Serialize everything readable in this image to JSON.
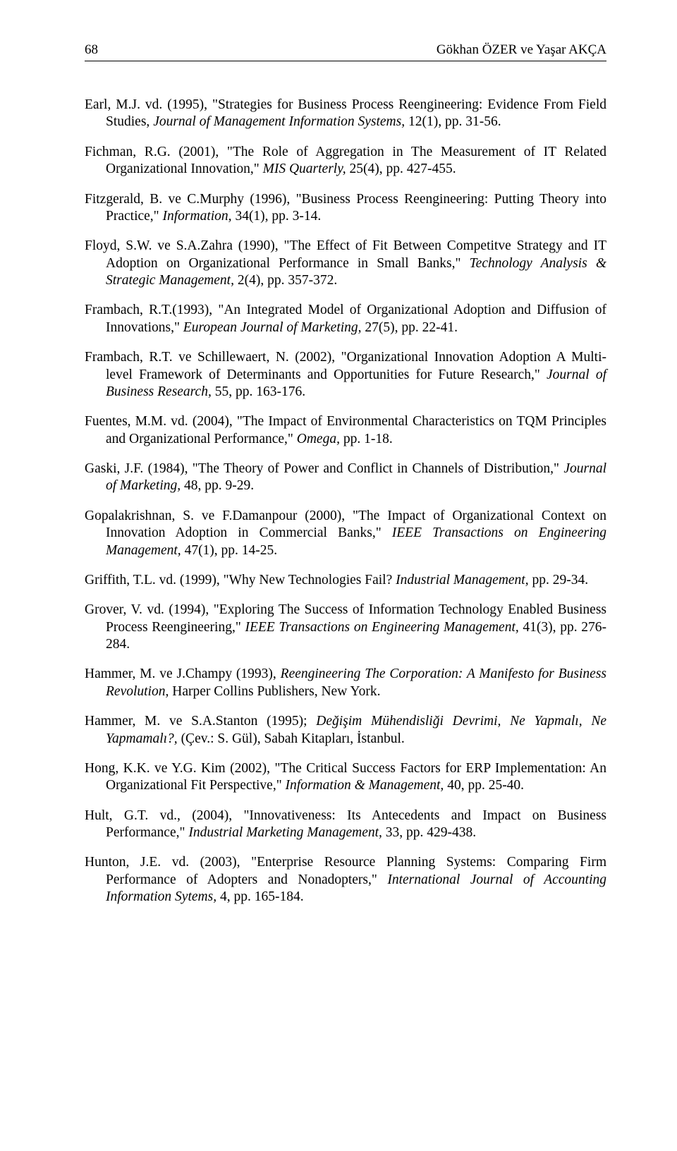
{
  "header": {
    "page_number": "68",
    "authors": "Gökhan ÖZER ve Yaşar AKÇA"
  },
  "references": [
    {
      "segments": [
        {
          "t": "Earl, M.J. vd. (1995), \"Strategies for Business Process Reengineering: Evidence From Field Studies, "
        },
        {
          "t": "Journal of Management Information Systems,",
          "i": true
        },
        {
          "t": " 12(1), pp. 31-56."
        }
      ]
    },
    {
      "segments": [
        {
          "t": "Fichman, R.G. (2001), \"The Role of Aggregation in The Measurement of IT Related Organizational Innovation,\" "
        },
        {
          "t": "MIS Quarterly,",
          "i": true
        },
        {
          "t": " 25(4), pp. 427-455."
        }
      ]
    },
    {
      "segments": [
        {
          "t": "Fitzgerald, B. ve C.Murphy (1996), \"Business Process Reengineering: Putting Theory into Practice,\" "
        },
        {
          "t": "Information,",
          "i": true
        },
        {
          "t": " 34(1), pp. 3-14."
        }
      ]
    },
    {
      "segments": [
        {
          "t": "Floyd, S.W. ve S.A.Zahra (1990), \"The Effect of Fit Between Competitve Strategy and IT Adoption on Organizational Performance in Small Banks,\" "
        },
        {
          "t": "Technology Analysis & Strategic Management,",
          "i": true
        },
        {
          "t": " 2(4), pp. 357-372."
        }
      ]
    },
    {
      "segments": [
        {
          "t": "Frambach, R.T.(1993), \"An Integrated Model of Organizational Adoption and Diffusion of Innovations,\" "
        },
        {
          "t": "European Journal of Marketing,",
          "i": true
        },
        {
          "t": " 27(5), pp. 22-41."
        }
      ]
    },
    {
      "segments": [
        {
          "t": "Frambach, R.T. ve Schillewaert, N. (2002), \"Organizational Innovation Adoption A Multi-level Framework of Determinants and Opportunities for Future Research,\" "
        },
        {
          "t": "Journal of Business Research,",
          "i": true
        },
        {
          "t": " 55, pp. 163-176."
        }
      ]
    },
    {
      "segments": [
        {
          "t": "Fuentes, M.M. vd. (2004), \"The Impact of Environmental Characteristics on TQM Principles and Organizational Performance,\" "
        },
        {
          "t": "Omega,",
          "i": true
        },
        {
          "t": " pp. 1-18."
        }
      ]
    },
    {
      "segments": [
        {
          "t": "Gaski, J.F. (1984), \"The Theory of Power and Conflict in Channels of Distribution,\" "
        },
        {
          "t": "Journal of Marketing,",
          "i": true
        },
        {
          "t": " 48, pp. 9-29."
        }
      ]
    },
    {
      "segments": [
        {
          "t": "Gopalakrishnan, S. ve F.Damanpour (2000), \"The Impact of Organizational Context on Innovation Adoption in Commercial Banks,\" "
        },
        {
          "t": "IEEE Transactions on Engineering Management,",
          "i": true
        },
        {
          "t": " 47(1), pp. 14-25."
        }
      ]
    },
    {
      "segments": [
        {
          "t": "Griffith, T.L. vd. (1999), \"Why New Technologies Fail? "
        },
        {
          "t": "Industrial Management,",
          "i": true
        },
        {
          "t": " pp. 29-34."
        }
      ]
    },
    {
      "segments": [
        {
          "t": "Grover, V. vd. (1994), \"Exploring The Success of Information Technology Enabled Business Process Reengineering,\" "
        },
        {
          "t": "IEEE Transactions on Engineering Management,",
          "i": true
        },
        {
          "t": " 41(3), pp. 276-284."
        }
      ]
    },
    {
      "segments": [
        {
          "t": "Hammer, M. ve J.Champy (1993), "
        },
        {
          "t": "Reengineering The Corporation: A Manifesto for Business Revolution,",
          "i": true
        },
        {
          "t": " Harper Collins Publishers, New York."
        }
      ]
    },
    {
      "segments": [
        {
          "t": "Hammer, M. ve S.A.Stanton (1995); "
        },
        {
          "t": "Değişim Mühendisliği Devrimi, Ne Yapmalı, Ne Yapmamalı?,",
          "i": true
        },
        {
          "t": " (Çev.: S. Gül), Sabah Kitapları, İstanbul."
        }
      ]
    },
    {
      "segments": [
        {
          "t": "Hong, K.K. ve Y.G. Kim (2002), \"The Critical Success Factors for ERP Implementation: An Organizational Fit Perspective,\" "
        },
        {
          "t": "Information & Management,",
          "i": true
        },
        {
          "t": " 40, pp. 25-40."
        }
      ]
    },
    {
      "segments": [
        {
          "t": "Hult, G.T. vd., (2004), \"Innovativeness: Its Antecedents and Impact on Business Performance,\" "
        },
        {
          "t": "Industrial Marketing Management,",
          "i": true
        },
        {
          "t": " 33, pp. 429-438."
        }
      ]
    },
    {
      "segments": [
        {
          "t": "Hunton, J.E. vd. (2003), \"Enterprise Resource Planning Systems: Comparing Firm Performance of Adopters and Nonadopters,\" "
        },
        {
          "t": "International Journal of Accounting Information Sytems,",
          "i": true
        },
        {
          "t": " 4, pp. 165-184."
        }
      ]
    }
  ]
}
